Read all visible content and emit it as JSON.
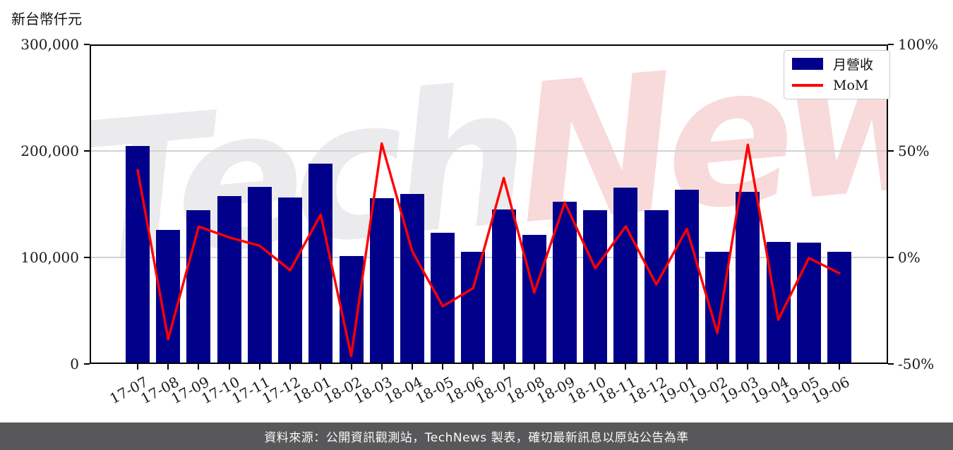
{
  "unit_label": "新台幣仟元",
  "watermark": {
    "gray_text": "Tech",
    "pink_text": "News"
  },
  "legend": {
    "items": [
      {
        "label": "月營收",
        "type": "bar",
        "color": "#00008B"
      },
      {
        "label": "MoM",
        "type": "line",
        "color": "#FF0000"
      }
    ]
  },
  "footer": {
    "text": "資料來源：公開資訊觀測站，TechNews 製表，確切最新訊息以原站公告為準"
  },
  "chart_data": {
    "type": "bar",
    "subtype": "bar+line-combo",
    "title": "",
    "unit_label": "新台幣仟元",
    "categories": [
      "17-07",
      "17-08",
      "17-09",
      "17-10",
      "17-11",
      "17-12",
      "18-01",
      "18-02",
      "18-03",
      "18-04",
      "18-05",
      "18-06",
      "18-07",
      "18-08",
      "18-09",
      "18-10",
      "18-11",
      "18-12",
      "19-01",
      "19-02",
      "19-03",
      "19-04",
      "19-05",
      "19-06"
    ],
    "series": [
      {
        "name": "月營收",
        "type": "bar",
        "axis": "left",
        "unit": "新台幣仟元",
        "color": "#00008B",
        "values": [
          204500,
          126000,
          144300,
          157800,
          166500,
          156500,
          188000,
          101200,
          155300,
          159800,
          123200,
          105500,
          144900,
          121000,
          152200,
          144400,
          165500,
          144400,
          163700,
          105600,
          161500,
          114400,
          114000,
          105600
        ]
      },
      {
        "name": "MoM",
        "type": "line",
        "axis": "right",
        "unit": "%",
        "color": "#FF0000",
        "values": [
          41.0,
          -38.4,
          14.5,
          9.4,
          5.5,
          -6.0,
          20.1,
          -46.2,
          53.5,
          2.9,
          -22.9,
          -14.4,
          37.3,
          -16.5,
          25.8,
          -5.1,
          14.6,
          -12.7,
          13.4,
          -35.5,
          52.9,
          -29.2,
          -0.3,
          -7.4
        ]
      }
    ],
    "left_axis": {
      "min": 0,
      "max": 300000,
      "tick_values": [
        0,
        100000,
        200000,
        300000
      ],
      "tick_labels": [
        "0",
        "100,000",
        "200,000",
        "300,000"
      ]
    },
    "right_axis": {
      "min": -50,
      "max": 100,
      "tick_values": [
        -50,
        0,
        50,
        100
      ],
      "tick_labels": [
        "-50%",
        "0%",
        "50%",
        "100%"
      ]
    },
    "grid": "horizontal",
    "legend_position": "upper-right"
  }
}
